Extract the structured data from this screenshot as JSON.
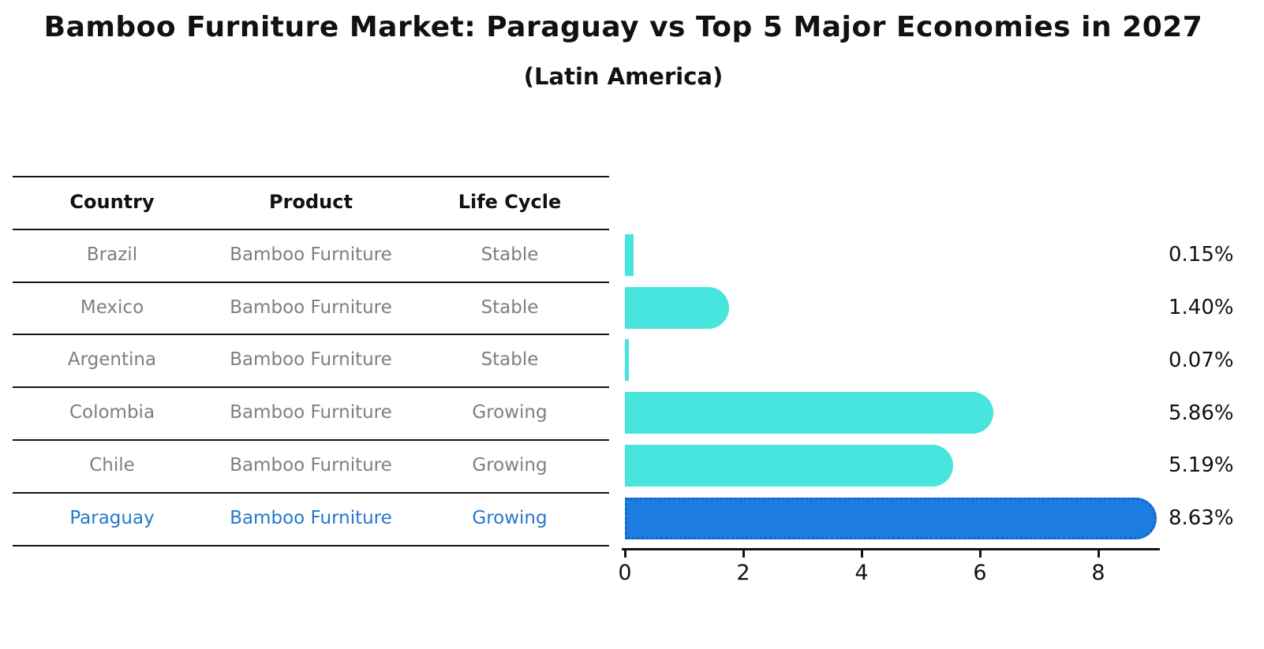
{
  "title": "Bamboo Furniture Market: Paraguay vs Top 5 Major Economies in 2027",
  "subtitle": "(Latin America)",
  "table": {
    "headers": [
      "Country",
      "Product",
      "Life Cycle"
    ],
    "rows": [
      {
        "country": "Brazil",
        "product": "Bamboo Furniture",
        "life_cycle": "Stable",
        "highlight": false
      },
      {
        "country": "Mexico",
        "product": "Bamboo Furniture",
        "life_cycle": "Stable",
        "highlight": false
      },
      {
        "country": "Argentina",
        "product": "Bamboo Furniture",
        "life_cycle": "Stable",
        "highlight": false
      },
      {
        "country": "Colombia",
        "product": "Bamboo Furniture",
        "life_cycle": "Growing",
        "highlight": false
      },
      {
        "country": "Chile",
        "product": "Bamboo Furniture",
        "life_cycle": "Growing",
        "highlight": false
      },
      {
        "country": "Paraguay",
        "product": "Bamboo Furniture",
        "life_cycle": "Growing",
        "highlight": true
      }
    ]
  },
  "chart_data": {
    "type": "bar",
    "orientation": "horizontal",
    "title": "Bamboo Furniture Market: Paraguay vs Top 5 Major Economies in 2027",
    "subtitle": "(Latin America)",
    "categories": [
      "Brazil",
      "Mexico",
      "Argentina",
      "Colombia",
      "Chile",
      "Paraguay"
    ],
    "values": [
      0.15,
      1.4,
      0.07,
      5.86,
      5.19,
      8.63
    ],
    "value_labels": [
      "0.15%",
      "1.40%",
      "0.07%",
      "5.86%",
      "5.19%",
      "8.63%"
    ],
    "x_ticks": [
      "0",
      "2",
      "4",
      "6",
      "8"
    ],
    "x_tick_values": [
      0,
      2,
      4,
      6,
      8
    ],
    "xlim": [
      0,
      9.1
    ],
    "xlabel": "",
    "ylabel": "",
    "grid": false,
    "legend": false,
    "highlight_index": 5,
    "bar_color": "#48E5DE",
    "highlight_bar_color": "#1E7BE0",
    "highlight_border_color": "#1464C8",
    "highlight_text_color": "#2478CB"
  },
  "colors": {
    "background": "#FFFFFF",
    "table_text": "#7F7F7F",
    "header_text": "#111111",
    "rule_line": "#141414",
    "value_label_text": "#111111"
  }
}
